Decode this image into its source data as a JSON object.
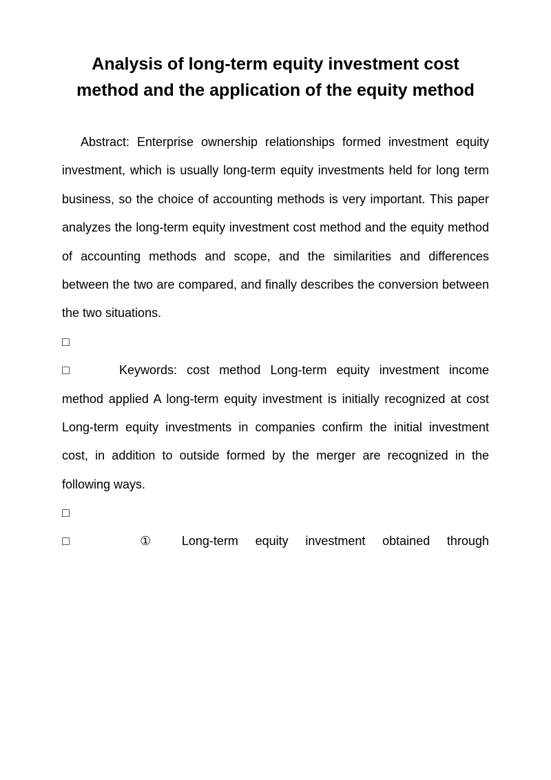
{
  "title": "Analysis of long-term equity investment cost method and the application of the equity method",
  "abstract": "Abstract: Enterprise ownership relationships formed investment equity investment, which is usually long-term equity investments held for long term business, so the choice of accounting methods is very important.   This paper analyzes the long-term equity investment cost method and the equity method of accounting methods and scope, and the similarities and differences between the two are compared, and finally describes the conversion between the two situations.",
  "bullet": "□",
  "keywords": "Keywords: cost method Long-term equity investment income method applied    A long-term equity investment is initially recognized at cost    Long-term equity investments in companies confirm the initial investment cost, in addition to outside formed by the merger are recognized in the following ways.",
  "item1_prefix": "①",
  "item1_text": "Long-term equity investment obtained through",
  "typography": {
    "title_fontsize": 25,
    "title_weight": 700,
    "body_fontsize": 18,
    "line_height": 2.3,
    "text_color": "#000000",
    "background_color": "#ffffff"
  }
}
